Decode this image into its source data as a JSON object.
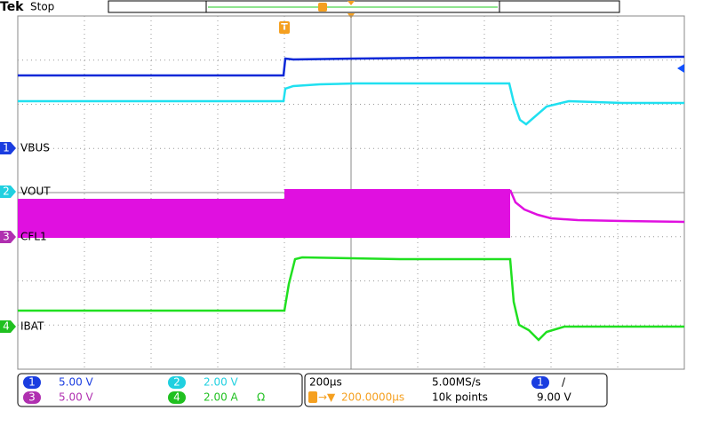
{
  "header": {
    "brand": "Tek",
    "status": "Stop"
  },
  "traces": [
    {
      "number": "1",
      "label": "VBUS"
    },
    {
      "number": "2",
      "label": "VOUT"
    },
    {
      "number": "3",
      "label": "CFL1"
    },
    {
      "number": "4",
      "label": "IBAT"
    }
  ],
  "vertical": [
    {
      "channel": "1",
      "scale": "5.00 V"
    },
    {
      "channel": "3",
      "scale": "5.00 V"
    },
    {
      "channel": "2",
      "scale": "2.00 V"
    },
    {
      "channel": "4",
      "scale": "2.00 A",
      "note": "Ω"
    }
  ],
  "horizontal": {
    "time_scale": "200µs",
    "sample_rate": "5.00MS/s",
    "position": "200.0000µs",
    "record_length": "10k points"
  },
  "trigger": {
    "source": "1",
    "slope": "/",
    "level": "9.00 V"
  }
}
